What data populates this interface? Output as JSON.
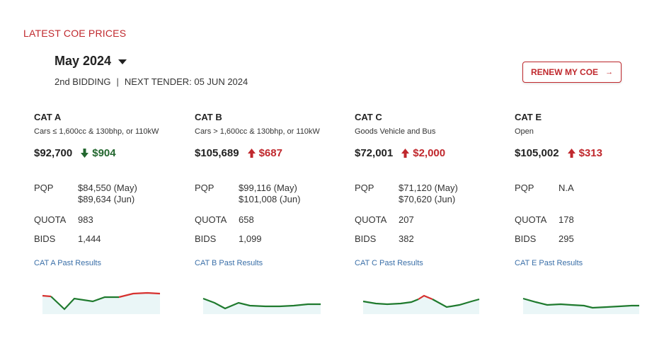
{
  "header": {
    "section_title": "LATEST COE PRICES",
    "month": "May 2024",
    "bidding": "2nd BIDDING",
    "separator": "|",
    "next_tender": "NEXT TENDER: 05 JUN 2024",
    "renew_label": "RENEW MY COE",
    "renew_arrow": "→"
  },
  "colors": {
    "accent": "#c0282d",
    "up": "#c0282d",
    "down": "#23672f",
    "link": "#3a6fa8",
    "sparkline_green": "#1f7a2e",
    "sparkline_red": "#d6312f",
    "sparkline_fill": "#d9eef0"
  },
  "stat_labels": {
    "pqp": "PQP",
    "quota": "QUOTA",
    "bids": "BIDS"
  },
  "categories": [
    {
      "name": "CAT A",
      "desc": "Cars ≤ 1,600cc & 130bhp, or 110kW",
      "price": "$92,700",
      "change": "$904",
      "direction": "down",
      "pqp_1": "$84,550 (May)",
      "pqp_2": "$89,634 (Jun)",
      "quota": "983",
      "bids": "1,444",
      "link": "CAT A Past Results"
    },
    {
      "name": "CAT B",
      "desc": "Cars > 1,600cc & 130bhp, or 110kW",
      "price": "$105,689",
      "change": "$687",
      "direction": "up",
      "pqp_1": "$99,116 (May)",
      "pqp_2": "$101,008 (Jun)",
      "quota": "658",
      "bids": "1,099",
      "link": "CAT B Past Results"
    },
    {
      "name": "CAT C",
      "desc": "Goods Vehicle and Bus",
      "price": "$72,001",
      "change": "$2,000",
      "direction": "up",
      "pqp_1": "$71,120 (May)",
      "pqp_2": "$70,620 (Jun)",
      "quota": "207",
      "bids": "382",
      "link": "CAT C Past Results"
    },
    {
      "name": "CAT E",
      "desc": "Open",
      "price": "$105,002",
      "change": "$313",
      "direction": "up",
      "pqp_1": "N.A",
      "pqp_2": "",
      "quota": "178",
      "bids": "295",
      "link": "CAT E Past Results"
    }
  ]
}
